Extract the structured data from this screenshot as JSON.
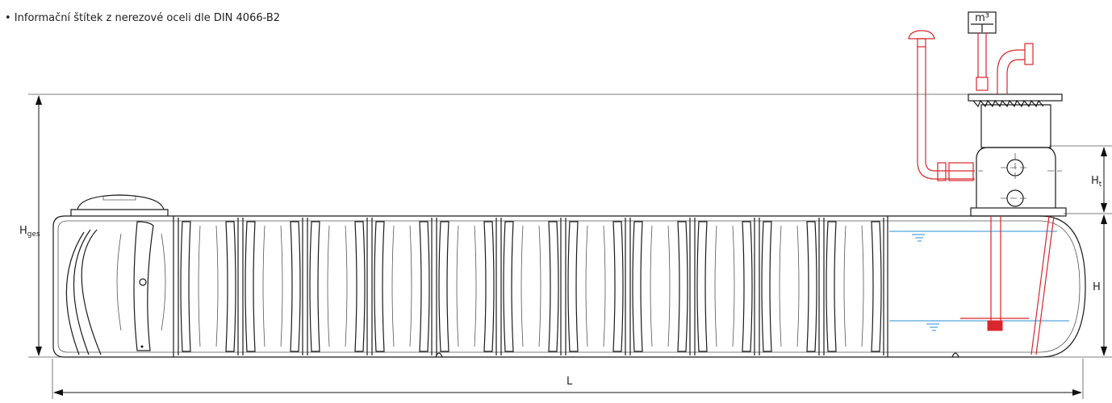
{
  "note": {
    "text": "• Informační štítek  z nerezové oceli dle DIN 4066-B2"
  },
  "dimensions": {
    "total_height": {
      "main": "H",
      "sub": "ges"
    },
    "turret_height": {
      "main": "H",
      "sub": "t"
    },
    "height": {
      "main": "H"
    },
    "length": {
      "main": "L"
    }
  },
  "meter": {
    "label": "m³"
  }
}
